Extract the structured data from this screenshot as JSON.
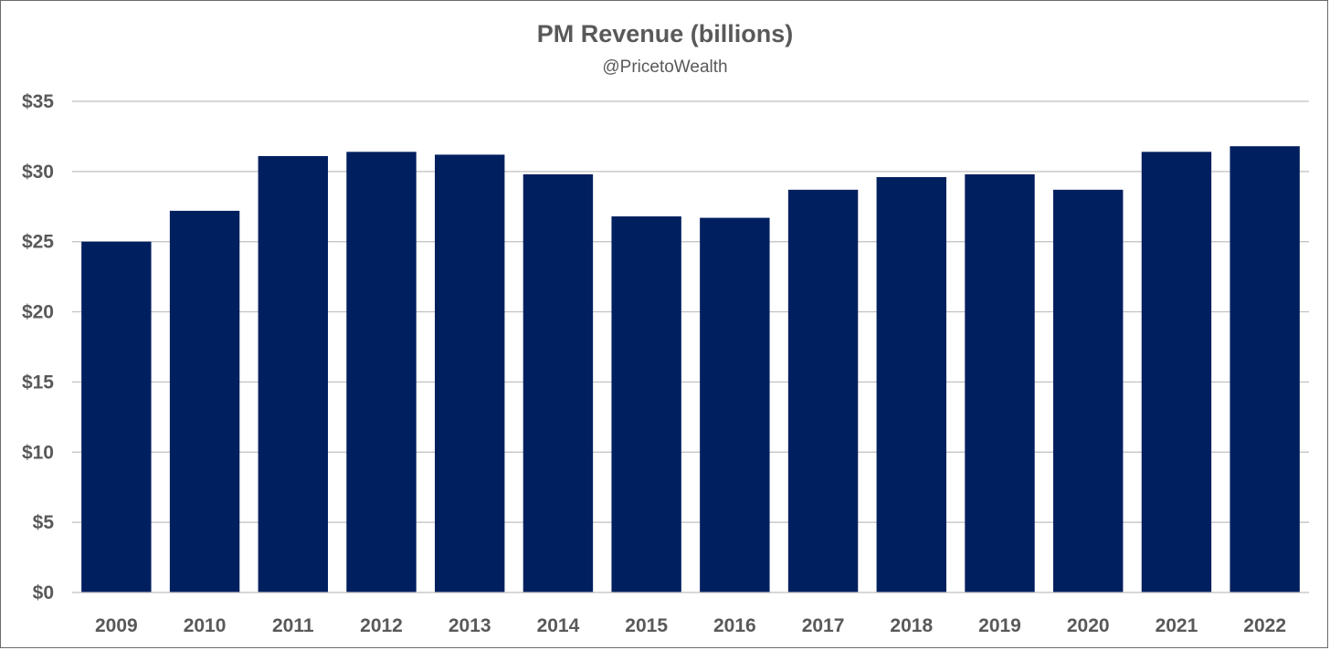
{
  "chart_data": {
    "type": "bar",
    "title": "PM Revenue (billions)",
    "subtitle": "@PricetoWealth",
    "xlabel": "",
    "ylabel": "",
    "categories": [
      "2009",
      "2010",
      "2011",
      "2012",
      "2013",
      "2014",
      "2015",
      "2016",
      "2017",
      "2018",
      "2019",
      "2020",
      "2021",
      "2022"
    ],
    "series": [
      {
        "name": "Revenue",
        "values": [
          25.0,
          27.2,
          31.1,
          31.4,
          31.2,
          29.8,
          26.8,
          26.7,
          28.7,
          29.6,
          29.8,
          28.7,
          31.4,
          31.8
        ]
      }
    ],
    "ylim": [
      0,
      35
    ],
    "yticks": [
      0,
      5,
      10,
      15,
      20,
      25,
      30,
      35
    ],
    "ytick_labels": [
      "$0",
      "$5",
      "$10",
      "$15",
      "$20",
      "$25",
      "$30",
      "$35"
    ],
    "grid": true,
    "legend": "none",
    "colors": {
      "bar": "#001f5f",
      "grid": "#bfbfbf",
      "text": "#595959",
      "border": "#6b6b6b"
    }
  }
}
